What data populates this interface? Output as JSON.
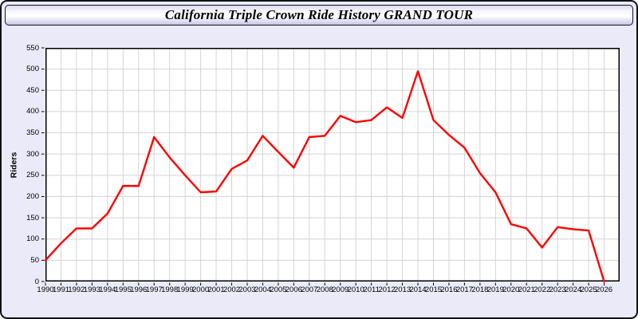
{
  "header": {
    "title": "California Triple Crown Ride History GRAND TOUR"
  },
  "chart_data": {
    "type": "line",
    "title": "California Triple Crown Ride History GRAND TOUR",
    "xlabel": "",
    "ylabel": "Riders",
    "ylim": [
      0,
      550
    ],
    "yticks": [
      0,
      50,
      100,
      150,
      200,
      250,
      300,
      350,
      400,
      450,
      500,
      550
    ],
    "grid": true,
    "legend_position": "none",
    "x": [
      1990,
      1991,
      1992,
      1993,
      1994,
      1995,
      1996,
      1997,
      1998,
      1999,
      2000,
      2001,
      2002,
      2003,
      2004,
      2005,
      2006,
      2007,
      2008,
      2009,
      2010,
      2011,
      2012,
      2013,
      2014,
      2015,
      2016,
      2017,
      2018,
      2019,
      2020,
      2021,
      2022,
      2023,
      2024,
      2025,
      2026
    ],
    "series": [
      {
        "name": "Riders",
        "color": "#ff0000",
        "values": [
          50,
          90,
          125,
          125,
          160,
          225,
          225,
          340,
          292,
          250,
          210,
          212,
          265,
          285,
          343,
          305,
          268,
          340,
          343,
          390,
          375,
          380,
          410,
          385,
          495,
          380,
          345,
          315,
          255,
          210,
          135,
          125,
          80,
          128,
          123,
          120,
          0
        ]
      }
    ],
    "colors": {
      "plot_bg": "#ffffff",
      "panel_bg": "#eaeaf8",
      "gridline": "#d4d4d4",
      "axis": "#000000"
    }
  }
}
